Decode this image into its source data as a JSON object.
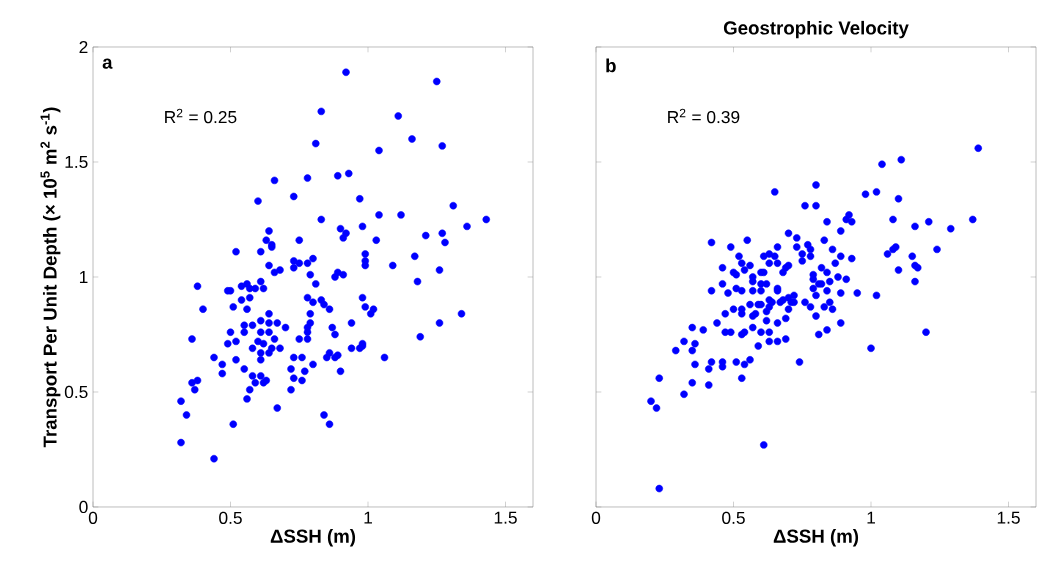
{
  "chart_data": [
    {
      "type": "scatter",
      "xlabel": "ΔSSH (m)",
      "ylabel": "Transport Per Unit Depth (× 10$^{5}$ m$^{2}$ s$^{-1}$)",
      "annotations": [
        "a",
        "R$^{2}$ = 0.25"
      ],
      "color": "#0000ff",
      "xlim": [
        0,
        1.6
      ],
      "ylim": [
        0,
        2
      ],
      "xticks": [
        0,
        0.5,
        1,
        1.5
      ],
      "yticks": [
        0,
        0.5,
        1,
        1.5,
        2
      ],
      "x": [
        0.92,
        1.25,
        0.83,
        1.11,
        1.16,
        1.27,
        0.81,
        1.04,
        0.66,
        0.78,
        0.89,
        0.93,
        0.73,
        0.6,
        0.97,
        1.31,
        1.04,
        1.12,
        1.43,
        0.83,
        1.36,
        0.9,
        0.98,
        0.64,
        0.92,
        0.91,
        1.27,
        1.21,
        0.63,
        0.75,
        1.03,
        1.28,
        0.65,
        0.65,
        0.52,
        0.61,
        0.99,
        1.17,
        0.8,
        0.73,
        0.99,
        0.75,
        0.78,
        0.99,
        1.09,
        0.64,
        0.73,
        0.68,
        0.66,
        1.26,
        0.79,
        0.88,
        0.91,
        0.89,
        1.18,
        0.38,
        0.49,
        0.5,
        0.54,
        0.56,
        0.61,
        0.62,
        0.59,
        0.57,
        0.81,
        0.57,
        0.54,
        0.51,
        0.56,
        0.4,
        0.78,
        0.8,
        0.83,
        0.84,
        0.86,
        0.98,
        0.99,
        1.02,
        1.01,
        1.34,
        1.26,
        1.19,
        0.79,
        0.64,
        0.61,
        0.64,
        0.55,
        0.58,
        0.67,
        0.7,
        0.79,
        0.78,
        0.78,
        0.87,
        0.88,
        0.94,
        0.5,
        0.55,
        0.61,
        0.64,
        0.36,
        0.49,
        0.52,
        0.6,
        0.66,
        0.75,
        0.78,
        0.58,
        0.62,
        0.65,
        0.68,
        0.64,
        0.61,
        0.61,
        0.44,
        0.52,
        0.47,
        0.47,
        0.55,
        0.58,
        0.61,
        0.59,
        0.62,
        0.63,
        0.57,
        0.56,
        0.73,
        0.76,
        0.72,
        0.77,
        0.8,
        0.73,
        0.76,
        0.72,
        0.86,
        0.85,
        0.88,
        0.89,
        0.94,
        0.97,
        0.98,
        0.98,
        1.06,
        0.9,
        0.36,
        0.38,
        0.37,
        0.32,
        0.34,
        0.32,
        0.44,
        0.51,
        0.67,
        0.84,
        0.86
      ],
      "values": [
        1.89,
        1.85,
        1.72,
        1.7,
        1.6,
        1.57,
        1.58,
        1.55,
        1.42,
        1.43,
        1.44,
        1.45,
        1.35,
        1.33,
        1.34,
        1.31,
        1.27,
        1.27,
        1.25,
        1.25,
        1.22,
        1.21,
        1.22,
        1.2,
        1.19,
        1.17,
        1.19,
        1.18,
        1.16,
        1.16,
        1.16,
        1.15,
        1.14,
        1.13,
        1.11,
        1.11,
        1.1,
        1.09,
        1.08,
        1.07,
        1.07,
        1.06,
        1.06,
        1.05,
        1.05,
        1.05,
        1.04,
        1.03,
        1.02,
        1.03,
        1.01,
        1.0,
        1.01,
        1.02,
        0.98,
        0.96,
        0.94,
        0.94,
        0.96,
        0.97,
        0.98,
        0.95,
        0.95,
        0.95,
        0.97,
        0.91,
        0.9,
        0.87,
        0.86,
        0.86,
        0.91,
        0.89,
        0.9,
        0.88,
        0.86,
        0.91,
        0.87,
        0.86,
        0.84,
        0.84,
        0.8,
        0.74,
        0.84,
        0.84,
        0.81,
        0.8,
        0.79,
        0.79,
        0.8,
        0.78,
        0.8,
        0.78,
        0.76,
        0.78,
        0.75,
        0.8,
        0.76,
        0.76,
        0.76,
        0.76,
        0.73,
        0.71,
        0.72,
        0.72,
        0.73,
        0.73,
        0.73,
        0.69,
        0.71,
        0.69,
        0.69,
        0.67,
        0.67,
        0.64,
        0.65,
        0.64,
        0.62,
        0.58,
        0.6,
        0.57,
        0.57,
        0.54,
        0.54,
        0.55,
        0.51,
        0.47,
        0.65,
        0.65,
        0.6,
        0.59,
        0.62,
        0.56,
        0.55,
        0.51,
        0.67,
        0.65,
        0.65,
        0.66,
        0.69,
        0.69,
        0.71,
        0.7,
        0.65,
        0.59,
        0.54,
        0.55,
        0.51,
        0.46,
        0.4,
        0.28,
        0.21,
        0.36,
        0.43,
        0.4,
        0.36
      ]
    },
    {
      "type": "scatter",
      "title": "Geostrophic Velocity",
      "xlabel": "ΔSSH (m)",
      "annotations": [
        "b",
        "R$^{2}$ = 0.39"
      ],
      "color": "#0000ff",
      "xlim": [
        0,
        1.6
      ],
      "ylim": [
        0,
        2
      ],
      "xticks": [
        0,
        0.5,
        1,
        1.5
      ],
      "yticks": [
        0,
        0.5,
        1,
        1.5,
        2
      ],
      "tick_labels": "x",
      "x": [
        1.39,
        1.11,
        1.04,
        0.8,
        0.65,
        0.98,
        1.02,
        1.1,
        0.76,
        0.8,
        0.84,
        0.91,
        0.92,
        0.93,
        0.89,
        1.08,
        1.16,
        1.21,
        1.29,
        1.37,
        0.7,
        0.73,
        0.83,
        0.42,
        0.49,
        0.55,
        0.66,
        0.73,
        0.77,
        0.78,
        0.86,
        0.75,
        0.78,
        0.75,
        0.89,
        0.93,
        0.87,
        1.06,
        1.08,
        1.09,
        1.24,
        1.15,
        1.16,
        1.17,
        1.1,
        1.16,
        1.02,
        0.95,
        0.52,
        0.61,
        0.63,
        0.65,
        0.53,
        0.56,
        0.63,
        0.66,
        0.7,
        0.69,
        0.54,
        0.46,
        0.5,
        0.51,
        0.57,
        0.57,
        0.6,
        0.61,
        0.68,
        0.79,
        0.82,
        0.84,
        0.88,
        0.91,
        0.79,
        0.81,
        0.82,
        0.85,
        0.79,
        0.46,
        0.42,
        0.48,
        0.51,
        0.53,
        0.6,
        0.62,
        0.57,
        0.6,
        0.66,
        0.66,
        0.84,
        0.89,
        0.8,
        0.72,
        0.7,
        0.71,
        0.72,
        0.76,
        0.78,
        0.68,
        0.67,
        0.63,
        0.64,
        0.56,
        0.59,
        0.6,
        0.63,
        0.83,
        0.85,
        0.86,
        0.5,
        0.53,
        0.53,
        0.47,
        0.57,
        0.58,
        0.62,
        0.62,
        0.7,
        0.69,
        0.66,
        0.8,
        0.89,
        0.44,
        0.35,
        0.39,
        1.2,
        0.47,
        0.49,
        0.53,
        0.54,
        0.6,
        0.63,
        0.69,
        0.66,
        0.63,
        0.59,
        0.57,
        0.81,
        0.84,
        0.74,
        1.0,
        0.32,
        0.36,
        0.29,
        0.35,
        0.36,
        0.42,
        0.41,
        0.46,
        0.46,
        0.51,
        0.54,
        0.56,
        0.53,
        0.35,
        0.41,
        0.32,
        0.23,
        0.2,
        0.22,
        0.23,
        0.61
      ],
      "values": [
        1.56,
        1.51,
        1.49,
        1.4,
        1.37,
        1.36,
        1.37,
        1.34,
        1.31,
        1.31,
        1.24,
        1.25,
        1.27,
        1.24,
        1.2,
        1.25,
        1.22,
        1.24,
        1.21,
        1.25,
        1.19,
        1.17,
        1.16,
        1.15,
        1.13,
        1.16,
        1.13,
        1.13,
        1.14,
        1.12,
        1.12,
        1.1,
        1.09,
        1.07,
        1.09,
        1.08,
        1.06,
        1.1,
        1.12,
        1.13,
        1.12,
        1.09,
        1.05,
        1.04,
        1.03,
        0.98,
        0.92,
        0.93,
        1.09,
        1.09,
        1.1,
        1.09,
        1.06,
        1.05,
        1.06,
        1.06,
        1.05,
        1.04,
        1.03,
        1.04,
        1.02,
        1.01,
        1.0,
        0.98,
        1.02,
        1.02,
        1.02,
        1.01,
        1.04,
        1.02,
        1.0,
        0.99,
        0.99,
        0.97,
        0.97,
        0.98,
        0.95,
        0.97,
        0.94,
        0.93,
        0.95,
        0.94,
        0.97,
        0.97,
        0.94,
        0.94,
        0.95,
        0.94,
        0.94,
        0.93,
        0.92,
        0.92,
        0.91,
        0.89,
        0.89,
        0.89,
        0.87,
        0.9,
        0.89,
        0.9,
        0.89,
        0.88,
        0.88,
        0.88,
        0.87,
        0.87,
        0.89,
        0.86,
        0.86,
        0.86,
        0.84,
        0.84,
        0.83,
        0.84,
        0.85,
        0.81,
        0.86,
        0.82,
        0.8,
        0.83,
        0.8,
        0.8,
        0.78,
        0.77,
        0.76,
        0.76,
        0.76,
        0.75,
        0.76,
        0.76,
        0.76,
        0.73,
        0.72,
        0.72,
        0.7,
        0.78,
        0.75,
        0.77,
        0.63,
        0.69,
        0.72,
        0.71,
        0.68,
        0.68,
        0.62,
        0.63,
        0.6,
        0.63,
        0.61,
        0.63,
        0.62,
        0.64,
        0.56,
        0.54,
        0.53,
        0.49,
        0.56,
        0.46,
        0.43,
        0.08,
        0.27
      ]
    }
  ]
}
